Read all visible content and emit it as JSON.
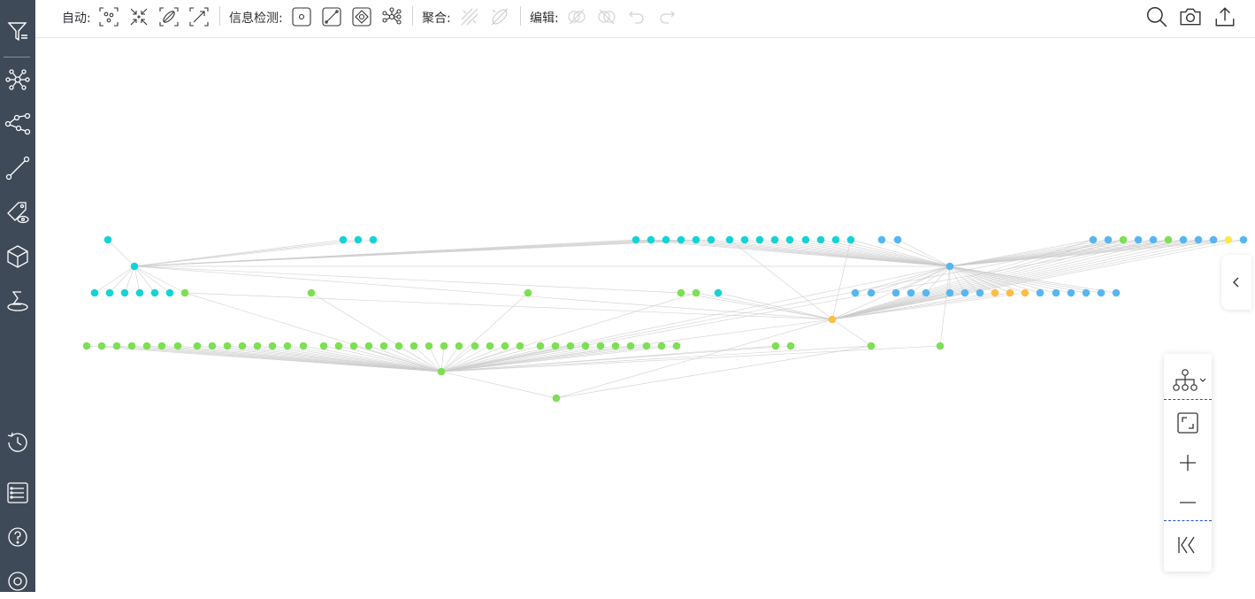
{
  "toolbar": {
    "auto_label": "自动:",
    "detect_label": "信息检测:",
    "aggregate_label": "聚合:",
    "edit_label": "编辑:"
  },
  "icons": {
    "sidebar": [
      "filter-icon",
      "network-icon",
      "share-nodes-icon",
      "path-icon",
      "tag-view-icon",
      "cube-icon",
      "sum-icon",
      "history-icon",
      "list-settings-icon",
      "help-icon",
      "settings-icon"
    ],
    "auto": [
      "auto-layout-icon",
      "expand-icon",
      "link-analysis-icon",
      "path-find-icon"
    ],
    "detect": [
      "node-detect-icon",
      "edge-detect-icon",
      "shape-detect-icon",
      "cluster-detect-icon"
    ],
    "aggregate": [
      "aggregate-edges-icon",
      "aggregate-group-icon"
    ],
    "edit": [
      "hide-icon",
      "unhide-icon",
      "undo-icon",
      "redo-icon"
    ],
    "right": [
      "search-icon",
      "camera-icon",
      "export-icon"
    ]
  },
  "colors": {
    "sidebar_bg": "#3f4a58",
    "cyan": "#15d3d5",
    "blue": "#56b6f2",
    "green": "#7ede54",
    "orange": "#fbbe47",
    "yellow": "#fbe94a",
    "edge": "#cccccc"
  }
}
